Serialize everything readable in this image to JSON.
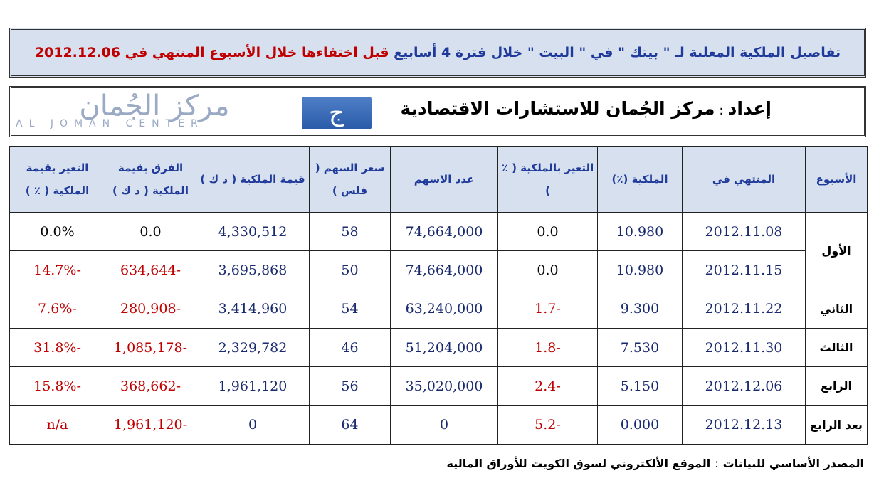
{
  "title": {
    "part1": "تفاصيل الملكية المعلنة لـ \" بيتك \" في \" البيت \" خلال فترة 4 أسابيع ",
    "part2": "قبل اختفاءها خلال الأسبوع المنتهي في 2012.12.06"
  },
  "header": {
    "prepared_label": "إعداد",
    "prepared_by": "مركز الجُمان للاستشارات الاقتصادية",
    "logo_ar": "مركز الجُمان",
    "logo_en": "AL JOMAN CENTER",
    "logo_mark": "ج"
  },
  "table": {
    "headers": [
      "الأسبوع",
      "المنتهي في",
      "الملكية (٪)",
      "التغير بالملكية ( ٪ )",
      "عدد الاسهم",
      "سعر السهم ( فلس )",
      "قيمة الملكية ( د ك )",
      "الفرق بقيمة الملكية ( د ك )",
      "التغير بقيمة الملكية ( ٪ )"
    ],
    "weeks": [
      "الأول",
      "الثاني",
      "الثالث",
      "الرابع",
      "بعد الرابع"
    ],
    "rows": [
      {
        "end_date": "2012.11.08",
        "ownership": "10.980",
        "ownership_change": "0.0",
        "shares": "74,664,000",
        "price": "58",
        "value": "4,330,512",
        "value_diff": "0.0",
        "value_change": "0.0%"
      },
      {
        "end_date": "2012.11.15",
        "ownership": "10.980",
        "ownership_change": "0.0",
        "shares": "74,664,000",
        "price": "50",
        "value": "3,695,868",
        "value_diff": "-634,644",
        "value_change": "-14.7%"
      },
      {
        "end_date": "2012.11.22",
        "ownership": "9.300",
        "ownership_change": "-1.7",
        "shares": "63,240,000",
        "price": "54",
        "value": "3,414,960",
        "value_diff": "-280,908",
        "value_change": "-7.6%"
      },
      {
        "end_date": "2012.11.30",
        "ownership": "7.530",
        "ownership_change": "-1.8",
        "shares": "51,204,000",
        "price": "46",
        "value": "2,329,782",
        "value_diff": "-1,085,178",
        "value_change": "-31.8%"
      },
      {
        "end_date": "2012.12.06",
        "ownership": "5.150",
        "ownership_change": "-2.4",
        "shares": "35,020,000",
        "price": "56",
        "value": "1,961,120",
        "value_diff": "-368,662",
        "value_change": "-15.8%"
      },
      {
        "end_date": "2012.12.13",
        "ownership": "0.000",
        "ownership_change": "-5.2",
        "shares": "0",
        "price": "64",
        "value": "0",
        "value_diff": "-1,961,120",
        "value_change": "n/a"
      }
    ]
  },
  "source": {
    "label": "المصدر الأساسي للبيانات",
    "value": "الموقع الألكتروني لسوق الكويت للأوراق المالية"
  },
  "colors": {
    "accent_blue": "#1f3a9a",
    "negative_red": "#c00000",
    "header_bg": "#d6e0ef"
  }
}
